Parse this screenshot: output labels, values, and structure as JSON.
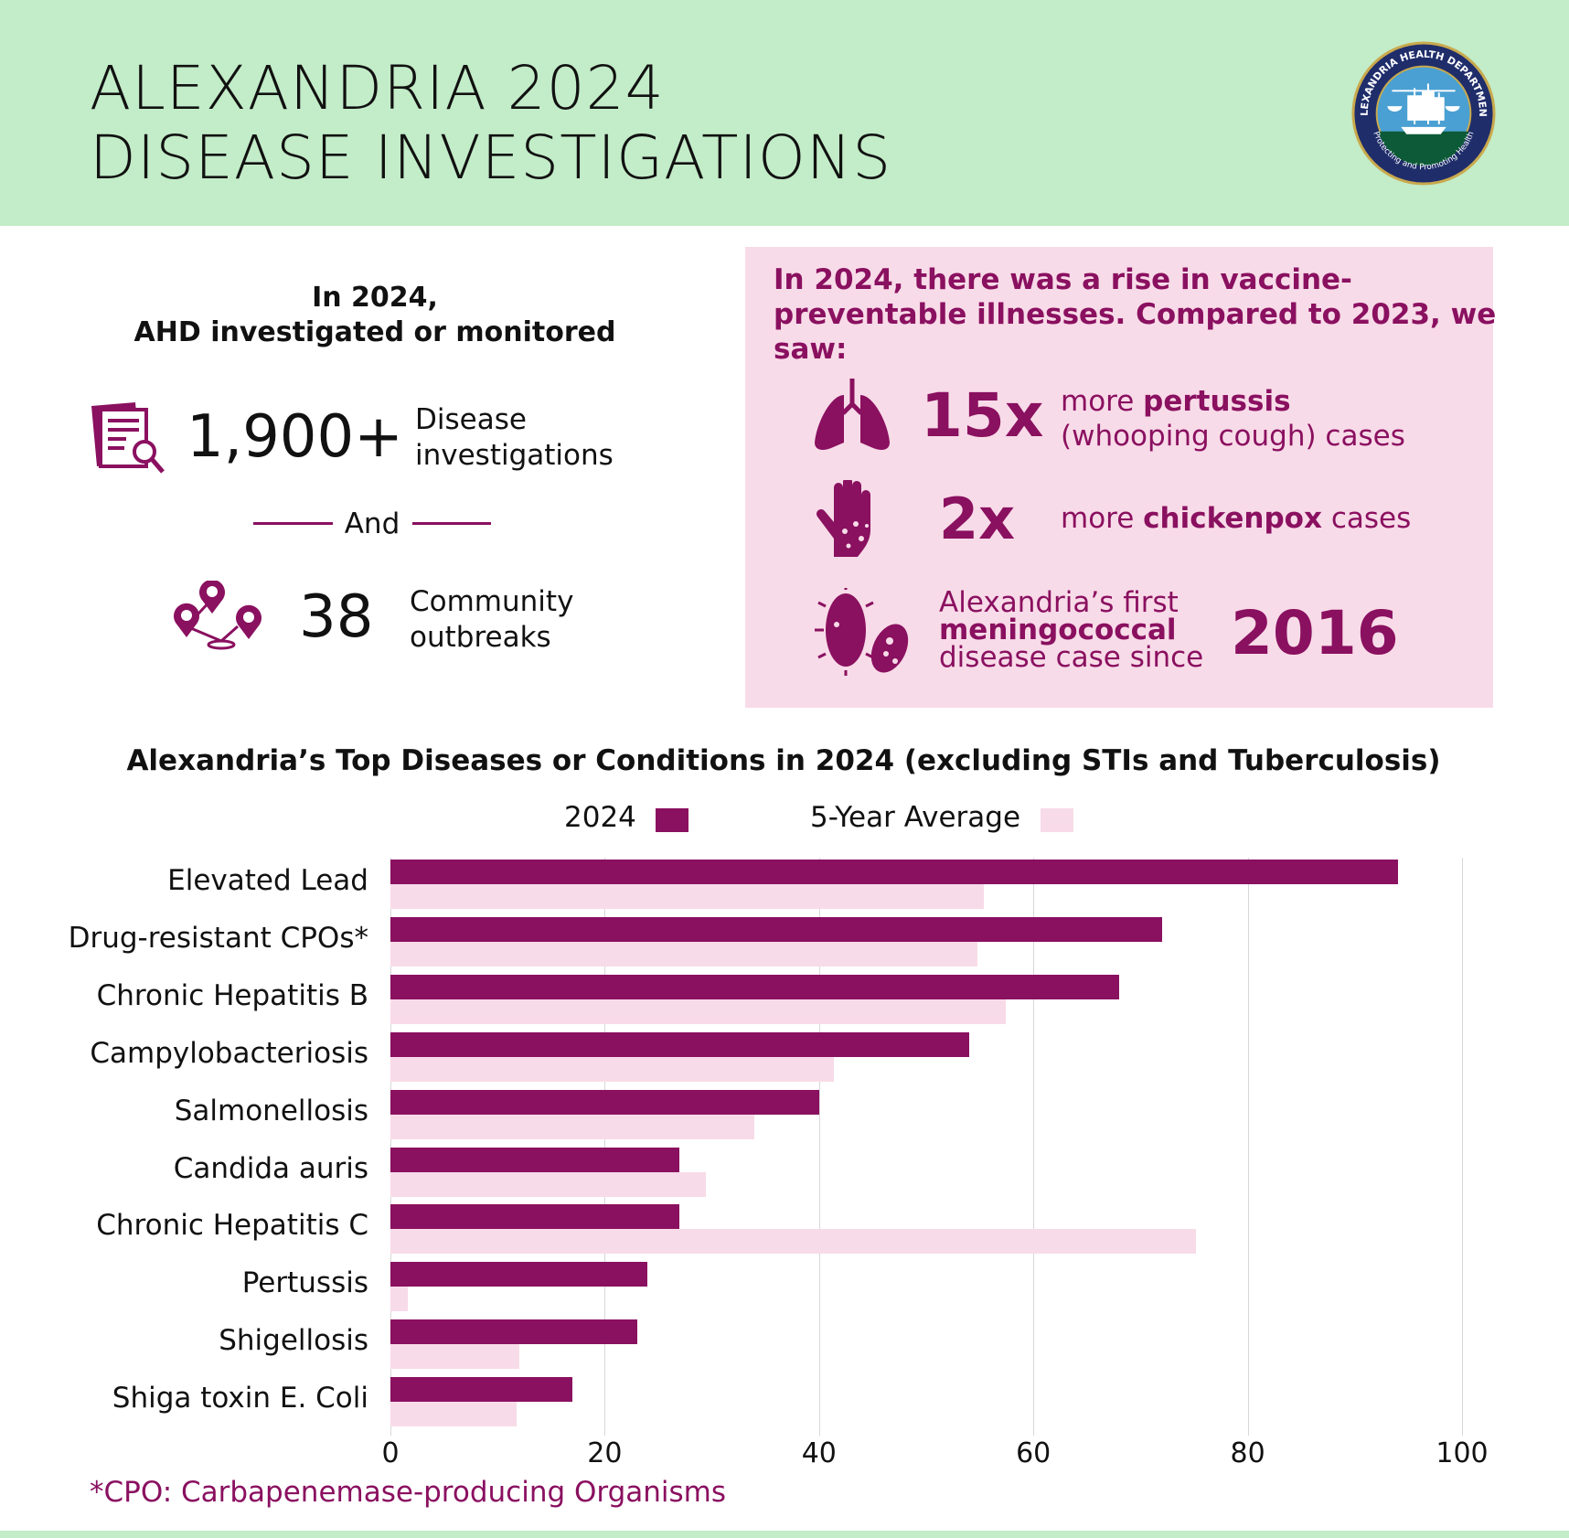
{
  "header": {
    "title_line1": "ALEXANDRIA 2024",
    "title_line2": "DISEASE INVESTIGATIONS",
    "logo_text_top": "ALEXANDRIA HEALTH DEPARTMENT",
    "logo_text_bottom": "Protecting and Promoting Health"
  },
  "summary": {
    "heading_line1": "In 2024,",
    "heading_line2": "AHD investigated or monitored",
    "investigations_value": "1,900+",
    "investigations_label1": "Disease",
    "investigations_label2": "investigations",
    "and_label": "And",
    "outbreaks_value": "38",
    "outbreaks_label1": "Community",
    "outbreaks_label2": "outbreaks"
  },
  "vaccine": {
    "heading_line1": "In 2024, there was a rise in vaccine-",
    "heading_line2": "preventable illnesses. Compared to 2023, we",
    "heading_line3": "saw:",
    "items": [
      {
        "value": "15x",
        "pre": "more ",
        "bold": "pertussis",
        "line2": "(whooping cough) cases",
        "icon": "lungs-icon"
      },
      {
        "value": "2x",
        "pre": "more ",
        "bold": "chickenpox",
        "post": " cases",
        "icon": "rash-hand-icon"
      },
      {
        "value": "2016",
        "line1": "Alexandria’s first",
        "bold": "meningococcal",
        "line3": "disease case since",
        "icon": "bacteria-icon"
      }
    ]
  },
  "colors": {
    "accent": "#8a1060",
    "light": "#f8dbe8",
    "header_bg": "#c3ecc8"
  },
  "chart_data": {
    "type": "bar",
    "orientation": "horizontal",
    "title": "Alexandria’s Top Diseases or Conditions in 2024 (excluding STIs and Tuberculosis)",
    "categories": [
      "Elevated Lead",
      "Drug-resistant CPOs*",
      "Chronic Hepatitis B",
      "Campylobacteriosis",
      "Salmonellosis",
      "Candida auris",
      "Chronic Hepatitis C",
      "Pertussis",
      "Shigellosis",
      "Shiga toxin E. Coli"
    ],
    "series": [
      {
        "name": "2024",
        "color": "#8a1060",
        "values": [
          94,
          72,
          68,
          54,
          40,
          27,
          27,
          24,
          23,
          17
        ]
      },
      {
        "name": "5-Year Average",
        "color": "#f8dbe8",
        "values": [
          55.4,
          54.8,
          57.4,
          41.4,
          34,
          29.4,
          75.2,
          1.6,
          12,
          11.8
        ]
      }
    ],
    "xlim": [
      0,
      100
    ],
    "xticks": [
      "0",
      "20",
      "40",
      "60",
      "80",
      "100"
    ],
    "grid": true,
    "legend": "top-center",
    "footnote": "*CPO: Carbapenemase-producing Organisms"
  }
}
